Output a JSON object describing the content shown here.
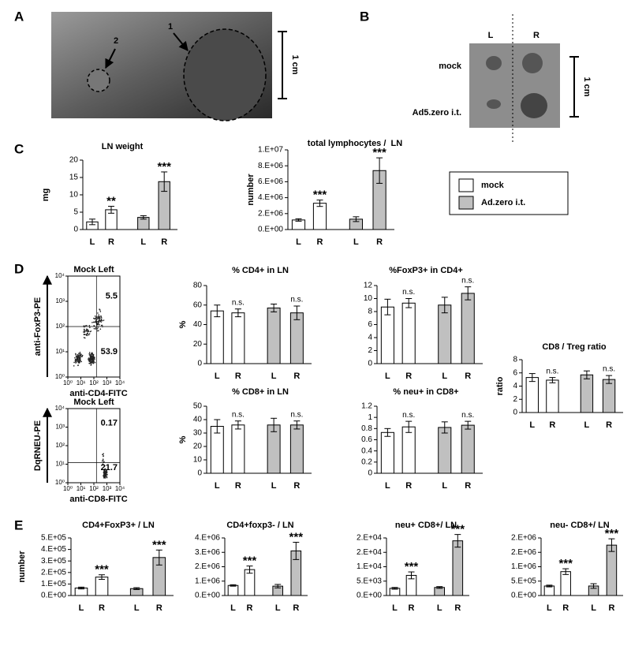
{
  "panels": [
    "A",
    "B",
    "C",
    "D",
    "E"
  ],
  "photo_a": {
    "labels": [
      "1",
      "2"
    ],
    "scale": "1 cm"
  },
  "photo_b": {
    "columns": [
      "L",
      "R"
    ],
    "rows": [
      "mock",
      "Ad5.zero i.t."
    ],
    "scale": "1 cm"
  },
  "legend": [
    {
      "name": "mock",
      "color": "#ffffff"
    },
    {
      "name": "Ad.zero i.t.",
      "color": "#c0c0c0"
    }
  ],
  "flow_plots": {
    "ticks": [
      {
        "value": 1,
        "label": "10⁰"
      },
      {
        "value": 10,
        "label": "10¹"
      },
      {
        "value": 100,
        "label": "10²"
      },
      {
        "value": 1000,
        "label": "10³"
      },
      {
        "value": 10000,
        "label": "10⁴"
      }
    ],
    "log_scale": true,
    "plots": [
      {
        "title": "Mock Left",
        "ylabel": "anti-FoxP3-PE",
        "xlabel": "anti-CD4-FITC",
        "quadrant_labels": [
          "5.5",
          "53.9"
        ]
      },
      {
        "title": "Mock Left",
        "ylabel": "DqRNEU-PE",
        "xlabel": "anti-CD8-FITC",
        "quadrant_labels": [
          "0.17",
          "21.7"
        ]
      }
    ]
  },
  "chart_data": [
    {
      "type": "bar",
      "title": "LN weight",
      "ylabel": "mg",
      "categories": [
        "L",
        "R"
      ],
      "ylim": [
        0,
        20
      ],
      "yticks": [
        0,
        5,
        10,
        15,
        20
      ],
      "series": [
        {
          "values": [
            2.2,
            5.7
          ],
          "errors": [
            0.8,
            1.0
          ],
          "annotations": [
            null,
            "**"
          ]
        },
        {
          "values": [
            3.5,
            13.8
          ],
          "errors": [
            0.5,
            2.8
          ],
          "annotations": [
            null,
            "***"
          ]
        }
      ]
    },
    {
      "type": "bar",
      "title": "total lymphocytes /  LN",
      "ylabel": "number",
      "categories": [
        "L",
        "R"
      ],
      "ylim": [
        0,
        10000000
      ],
      "yticks": [
        {
          "value": 0,
          "label": "0.E+00"
        },
        {
          "value": 2000000,
          "label": "2.E+06"
        },
        {
          "value": 4000000,
          "label": "4.E+06"
        },
        {
          "value": 6000000,
          "label": "6.E+06"
        },
        {
          "value": 8000000,
          "label": "8.E+06"
        },
        {
          "value": 10000000,
          "label": "1.E+07"
        }
      ],
      "series": [
        {
          "values": [
            1200000,
            3300000
          ],
          "errors": [
            150000,
            400000
          ],
          "annotations": [
            null,
            "***"
          ]
        },
        {
          "values": [
            1300000,
            7400000
          ],
          "errors": [
            300000,
            1600000
          ],
          "annotations": [
            null,
            "***"
          ]
        }
      ]
    },
    {
      "type": "bar",
      "title": "% CD4+ in LN",
      "ylabel": "%",
      "categories": [
        "L",
        "R"
      ],
      "ylim": [
        0,
        80
      ],
      "yticks": [
        0,
        20,
        40,
        60,
        80
      ],
      "series": [
        {
          "values": [
            54,
            52
          ],
          "errors": [
            6,
            4
          ],
          "annotations": [
            null,
            "n.s."
          ]
        },
        {
          "values": [
            57,
            52
          ],
          "errors": [
            4,
            7
          ],
          "annotations": [
            null,
            "n.s."
          ]
        }
      ]
    },
    {
      "type": "bar",
      "title": "%FoxP3+ in CD4+",
      "categories": [
        "L",
        "R"
      ],
      "ylim": [
        0,
        12
      ],
      "yticks": [
        0,
        2,
        4,
        6,
        8,
        10,
        12
      ],
      "series": [
        {
          "values": [
            8.7,
            9.3
          ],
          "errors": [
            1.2,
            0.7
          ],
          "annotations": [
            null,
            "n.s."
          ]
        },
        {
          "values": [
            9.0,
            10.8
          ],
          "errors": [
            1.2,
            1.0
          ],
          "annotations": [
            null,
            "n.s."
          ]
        }
      ]
    },
    {
      "type": "bar",
      "title": "% CD8+ in LN",
      "ylabel": "%",
      "categories": [
        "L",
        "R"
      ],
      "ylim": [
        0,
        50
      ],
      "yticks": [
        0,
        10,
        20,
        30,
        40,
        50
      ],
      "series": [
        {
          "values": [
            35,
            36
          ],
          "errors": [
            5,
            3
          ],
          "annotations": [
            null,
            "n.s."
          ]
        },
        {
          "values": [
            36,
            36
          ],
          "errors": [
            5,
            3
          ],
          "annotations": [
            null,
            "n.s."
          ]
        }
      ]
    },
    {
      "type": "bar",
      "title": "% neu+ in CD8+",
      "categories": [
        "L",
        "R"
      ],
      "ylim": [
        0,
        1.2
      ],
      "yticks": [
        0,
        0.2,
        0.4,
        0.6,
        0.8,
        1,
        1.2
      ],
      "series": [
        {
          "values": [
            0.73,
            0.83
          ],
          "errors": [
            0.07,
            0.1
          ],
          "annotations": [
            null,
            "n.s."
          ]
        },
        {
          "values": [
            0.82,
            0.86
          ],
          "errors": [
            0.1,
            0.07
          ],
          "annotations": [
            null,
            "n.s."
          ]
        }
      ]
    },
    {
      "type": "bar",
      "title": "CD8 / Treg ratio",
      "ylabel": "ratio",
      "categories": [
        "L",
        "R"
      ],
      "ylim": [
        0,
        8
      ],
      "yticks": [
        0,
        2,
        4,
        6,
        8
      ],
      "series": [
        {
          "values": [
            5.3,
            4.9
          ],
          "errors": [
            0.6,
            0.4
          ],
          "annotations": [
            null,
            "n.s."
          ]
        },
        {
          "values": [
            5.7,
            5.0
          ],
          "errors": [
            0.6,
            0.6
          ],
          "annotations": [
            null,
            "n.s."
          ]
        }
      ]
    },
    {
      "type": "bar",
      "title": "CD4+FoxP3+ / LN",
      "ylabel": "number",
      "categories": [
        "L",
        "R"
      ],
      "ylim": [
        0,
        500000
      ],
      "yticks": [
        {
          "value": 0,
          "label": "0.E+00"
        },
        {
          "value": 100000,
          "label": "1.E+05"
        },
        {
          "value": 200000,
          "label": "2.E+05"
        },
        {
          "value": 300000,
          "label": "3.E+05"
        },
        {
          "value": 400000,
          "label": "4.E+05"
        },
        {
          "value": 500000,
          "label": "5.E+05"
        }
      ],
      "series": [
        {
          "values": [
            65000,
            160000
          ],
          "errors": [
            8000,
            20000
          ],
          "annotations": [
            null,
            "***"
          ]
        },
        {
          "values": [
            60000,
            330000
          ],
          "errors": [
            8000,
            65000
          ],
          "annotations": [
            null,
            "***"
          ]
        }
      ]
    },
    {
      "type": "bar",
      "title": "CD4+foxp3- / LN",
      "categories": [
        "L",
        "R"
      ],
      "ylim": [
        0,
        4000000
      ],
      "yticks": [
        {
          "value": 0,
          "label": "0.E+00"
        },
        {
          "value": 1000000,
          "label": "1.E+06"
        },
        {
          "value": 2000000,
          "label": "2.E+06"
        },
        {
          "value": 3000000,
          "label": "3.E+06"
        },
        {
          "value": 4000000,
          "label": "4.E+06"
        }
      ],
      "series": [
        {
          "values": [
            700000,
            1800000
          ],
          "errors": [
            50000,
            250000
          ],
          "annotations": [
            null,
            "***"
          ]
        },
        {
          "values": [
            650000,
            3100000
          ],
          "errors": [
            120000,
            600000
          ],
          "annotations": [
            null,
            "***"
          ]
        }
      ]
    },
    {
      "type": "bar",
      "title": "neu+ CD8+/ LN",
      "categories": [
        "L",
        "R"
      ],
      "ylim": [
        0,
        20000
      ],
      "yticks": [
        {
          "value": 0,
          "label": "0.E+00"
        },
        {
          "value": 5000,
          "label": "5.E+03"
        },
        {
          "value": 10000,
          "label": "1.E+04"
        },
        {
          "value": 15000,
          "label": "2.E+04"
        },
        {
          "value": 20000,
          "label": "2.E+04"
        }
      ],
      "series": [
        {
          "values": [
            2500,
            7000
          ],
          "errors": [
            300,
            1200
          ],
          "annotations": [
            null,
            "***"
          ]
        },
        {
          "values": [
            2800,
            19000
          ],
          "errors": [
            300,
            2200
          ],
          "annotations": [
            null,
            "***"
          ]
        }
      ]
    },
    {
      "type": "bar",
      "title": "neu- CD8+/ LN",
      "categories": [
        "L",
        "R"
      ],
      "ylim": [
        0,
        2000000
      ],
      "yticks": [
        {
          "value": 0,
          "label": "0.E+00"
        },
        {
          "value": 500000,
          "label": "5.E+05"
        },
        {
          "value": 1000000,
          "label": "1.E+06"
        },
        {
          "value": 1500000,
          "label": "2.E+06"
        },
        {
          "value": 2000000,
          "label": "2.E+06"
        }
      ],
      "series": [
        {
          "values": [
            330000,
            830000
          ],
          "errors": [
            30000,
            100000
          ],
          "annotations": [
            null,
            "***"
          ]
        },
        {
          "values": [
            330000,
            1750000
          ],
          "errors": [
            80000,
            220000
          ],
          "annotations": [
            null,
            "***"
          ]
        }
      ]
    }
  ]
}
